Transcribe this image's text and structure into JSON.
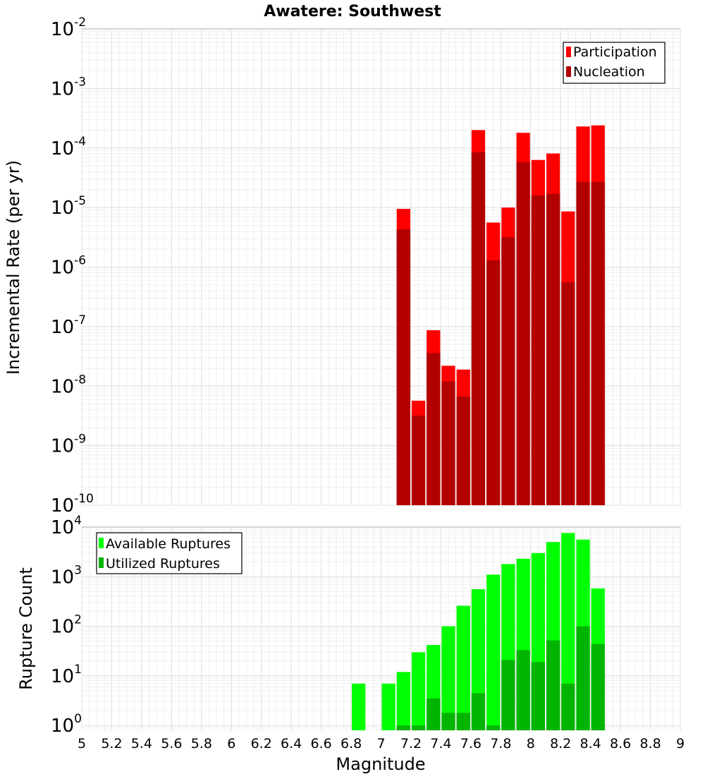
{
  "title": "Awatere: Southwest",
  "xlabel": "Magnitude",
  "chart_data": [
    {
      "type": "bar",
      "yscale": "log",
      "title": "Awatere: Southwest",
      "ylabel": "Incremental Rate (per yr)",
      "xlim": [
        5,
        9
      ],
      "ylim": [
        1e-10,
        0.01
      ],
      "grid": true,
      "legend_position": "top-right",
      "x": [
        7.15,
        7.25,
        7.35,
        7.45,
        7.55,
        7.65,
        7.75,
        7.85,
        7.95,
        8.05,
        8.15,
        8.25,
        8.35,
        8.45
      ],
      "series": [
        {
          "name": "Participation",
          "color": "#ff0000",
          "values": [
            9.5e-06,
            5.7e-09,
            8.7e-08,
            2.2e-08,
            1.9e-08,
            0.0002,
            5.6e-06,
            1e-05,
            0.00018,
            6.3e-05,
            8.1e-05,
            8.6e-06,
            0.00023,
            0.00024
          ]
        },
        {
          "name": "Nucleation",
          "color": "#b20000",
          "values": [
            4.3e-06,
            3.2e-09,
            3.6e-08,
            1.2e-08,
            6.7e-09,
            8.5e-05,
            1.3e-06,
            3.2e-06,
            5.8e-05,
            1.6e-05,
            1.7e-05,
            5.6e-07,
            2.7e-05,
            2.7e-05
          ]
        }
      ],
      "ytick_labels": [
        {
          "base": "10",
          "exp": "-2"
        },
        {
          "base": "10",
          "exp": "-3"
        },
        {
          "base": "10",
          "exp": "-4"
        },
        {
          "base": "10",
          "exp": "-5"
        },
        {
          "base": "10",
          "exp": "-6"
        },
        {
          "base": "10",
          "exp": "-7"
        },
        {
          "base": "10",
          "exp": "-8"
        },
        {
          "base": "10",
          "exp": "-9"
        },
        {
          "base": "10",
          "exp": "-10"
        }
      ]
    },
    {
      "type": "bar",
      "yscale": "log",
      "ylabel": "Rupture Count",
      "xlabel": "Magnitude",
      "xlim": [
        5,
        9
      ],
      "ylim": [
        0.8,
        10000
      ],
      "grid": true,
      "legend_position": "top-left",
      "x": [
        6.85,
        7.05,
        7.15,
        7.25,
        7.35,
        7.45,
        7.55,
        7.65,
        7.75,
        7.85,
        7.95,
        8.05,
        8.15,
        8.25,
        8.35,
        8.45
      ],
      "series": [
        {
          "name": "Available Ruptures",
          "color": "#00ff00",
          "values": [
            7,
            7,
            12,
            30,
            42,
            100,
            260,
            560,
            1100,
            1800,
            2300,
            3000,
            5000,
            7600,
            5600,
            580
          ]
        },
        {
          "name": "Utilized Ruptures",
          "color": "#00b400",
          "values": [
            0,
            0,
            1,
            1,
            3.5,
            1.8,
            1.8,
            4.5,
            1,
            21,
            33,
            19,
            52,
            7,
            100,
            44
          ]
        }
      ],
      "ytick_labels": [
        {
          "base": "10",
          "exp": "4"
        },
        {
          "base": "10",
          "exp": "3"
        },
        {
          "base": "10",
          "exp": "2"
        },
        {
          "base": "10",
          "exp": "1"
        },
        {
          "base": "10",
          "exp": "0"
        }
      ],
      "xtick_labels": [
        "5",
        "5.2",
        "5.4",
        "5.6",
        "5.8",
        "6",
        "6.2",
        "6.4",
        "6.6",
        "6.8",
        "7",
        "7.2",
        "7.4",
        "7.6",
        "7.8",
        "8",
        "8.2",
        "8.4",
        "8.6",
        "8.8",
        "9"
      ]
    }
  ]
}
